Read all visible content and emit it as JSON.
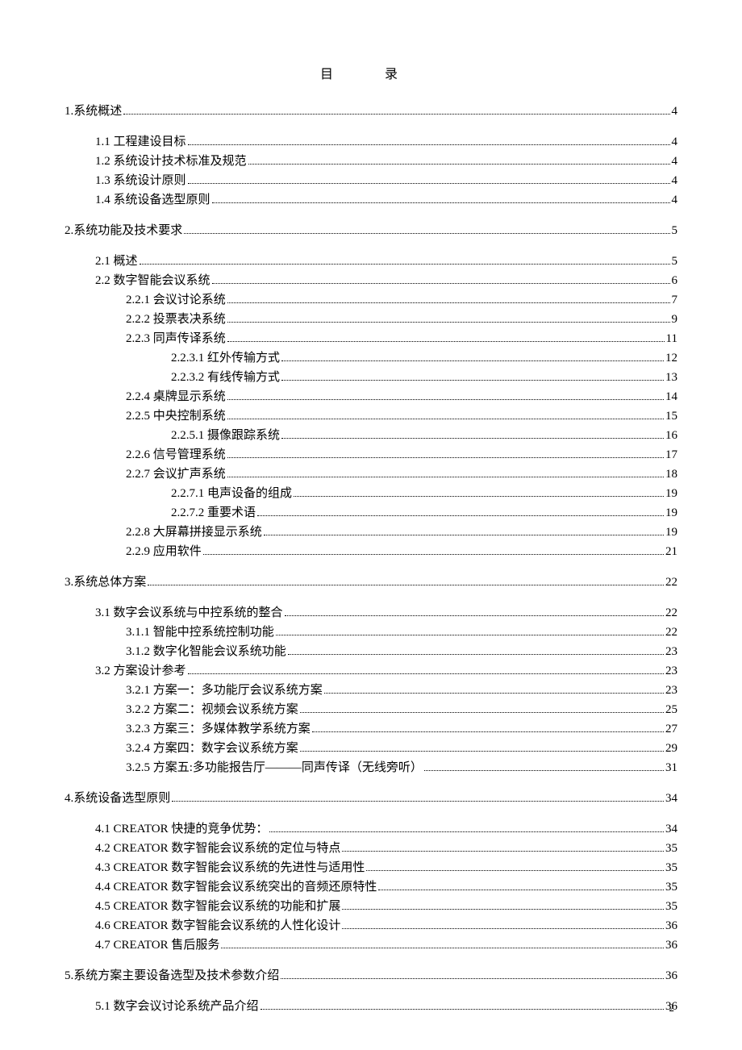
{
  "title": "目  录",
  "footer_page": "2",
  "entries": [
    {
      "label": "1.系统概述",
      "page": "4",
      "indent": 0,
      "gap": false
    },
    {
      "label": "1.1 工程建设目标",
      "page": "4",
      "indent": 1,
      "gap": true
    },
    {
      "label": "1.2 系统设计技术标准及规范",
      "page": "4",
      "indent": 1,
      "gap": false
    },
    {
      "label": "1.3 系统设计原则",
      "page": "4",
      "indent": 1,
      "gap": false
    },
    {
      "label": "1.4 系统设备选型原则",
      "page": "4",
      "indent": 1,
      "gap": false
    },
    {
      "label": "2.系统功能及技术要求",
      "page": "5",
      "indent": 0,
      "gap": true
    },
    {
      "label": "2.1 概述",
      "page": "5",
      "indent": 1,
      "gap": true
    },
    {
      "label": "2.2 数字智能会议系统",
      "page": "6",
      "indent": 1,
      "gap": false
    },
    {
      "label": "2.2.1 会议讨论系统",
      "page": "7",
      "indent": 2,
      "gap": false
    },
    {
      "label": "2.2.2 投票表决系统",
      "page": "9",
      "indent": 2,
      "gap": false
    },
    {
      "label": "2.2.3 同声传译系统",
      "page": "11",
      "indent": 2,
      "gap": false
    },
    {
      "label": "2.2.3.1 红外传输方式",
      "page": "12",
      "indent": 3,
      "gap": false
    },
    {
      "label": "2.2.3.2 有线传输方式",
      "page": "13",
      "indent": 3,
      "gap": false
    },
    {
      "label": "2.2.4 桌牌显示系统",
      "page": "14",
      "indent": 2,
      "gap": false
    },
    {
      "label": "2.2.5 中央控制系统",
      "page": "15",
      "indent": 2,
      "gap": false
    },
    {
      "label": "2.2.5.1 摄像跟踪系统",
      "page": "16",
      "indent": 3,
      "gap": false
    },
    {
      "label": "2.2.6 信号管理系统",
      "page": "17",
      "indent": 2,
      "gap": false
    },
    {
      "label": "2.2.7 会议扩声系统",
      "page": "18",
      "indent": 2,
      "gap": false
    },
    {
      "label": "2.2.7.1 电声设备的组成",
      "page": "19",
      "indent": 3,
      "gap": false
    },
    {
      "label": "2.2.7.2 重要术语",
      "page": "19",
      "indent": 3,
      "gap": false
    },
    {
      "label": "2.2.8 大屏幕拼接显示系统",
      "page": "19",
      "indent": 2,
      "gap": false
    },
    {
      "label": "2.2.9 应用软件",
      "page": "21",
      "indent": 2,
      "gap": false
    },
    {
      "label": "3.系统总体方案",
      "page": "22",
      "indent": 0,
      "gap": true
    },
    {
      "label": "3.1  数字会议系统与中控系统的整合",
      "page": "22",
      "indent": 1,
      "gap": true
    },
    {
      "label": "3.1.1 智能中控系统控制功能",
      "page": "22",
      "indent": 2,
      "gap": false
    },
    {
      "label": "3.1.2 数字化智能会议系统功能",
      "page": "23",
      "indent": 2,
      "gap": false
    },
    {
      "label": "3.2  方案设计参考",
      "page": "23",
      "indent": 1,
      "gap": false
    },
    {
      "label": "3.2.1  方案一：多功能厅会议系统方案",
      "page": "23",
      "indent": 2,
      "gap": false
    },
    {
      "label": "3.2.2  方案二：视频会议系统方案",
      "page": "25",
      "indent": 2,
      "gap": false
    },
    {
      "label": "3.2.3  方案三：多媒体教学系统方案",
      "page": "27",
      "indent": 2,
      "gap": false
    },
    {
      "label": "3.2.4  方案四：数字会议系统方案",
      "page": "29",
      "indent": 2,
      "gap": false
    },
    {
      "label": "3.2.5  方案五:多功能报告厅———同声传译（无线旁听）",
      "page": "31",
      "indent": 2,
      "gap": false
    },
    {
      "label": "4.系统设备选型原则",
      "page": "34",
      "indent": 0,
      "gap": true
    },
    {
      "label": "4.1 CREATOR 快捷的竞争优势：",
      "page": "34",
      "indent": 1,
      "gap": true
    },
    {
      "label": "4.2 CREATOR 数字智能会议系统的定位与特点",
      "page": "35",
      "indent": 1,
      "gap": false
    },
    {
      "label": "4.3 CREATOR 数字智能会议系统的先进性与适用性",
      "page": "35",
      "indent": 1,
      "gap": false
    },
    {
      "label": "4.4 CREATOR 数字智能会议系统突出的音频还原特性",
      "page": "35",
      "indent": 1,
      "gap": false
    },
    {
      "label": "4.5 CREATOR 数字智能会议系统的功能和扩展",
      "page": "35",
      "indent": 1,
      "gap": false
    },
    {
      "label": "4.6 CREATOR 数字智能会议系统的人性化设计",
      "page": "36",
      "indent": 1,
      "gap": false
    },
    {
      "label": "4.7 CREATOR 售后服务",
      "page": "36",
      "indent": 1,
      "gap": false
    },
    {
      "label": "5.系统方案主要设备选型及技术参数介绍",
      "page": "36",
      "indent": 0,
      "gap": true
    },
    {
      "label": "5.1 数字会议讨论系统产品介绍",
      "page": "36",
      "indent": 1,
      "gap": true
    }
  ]
}
